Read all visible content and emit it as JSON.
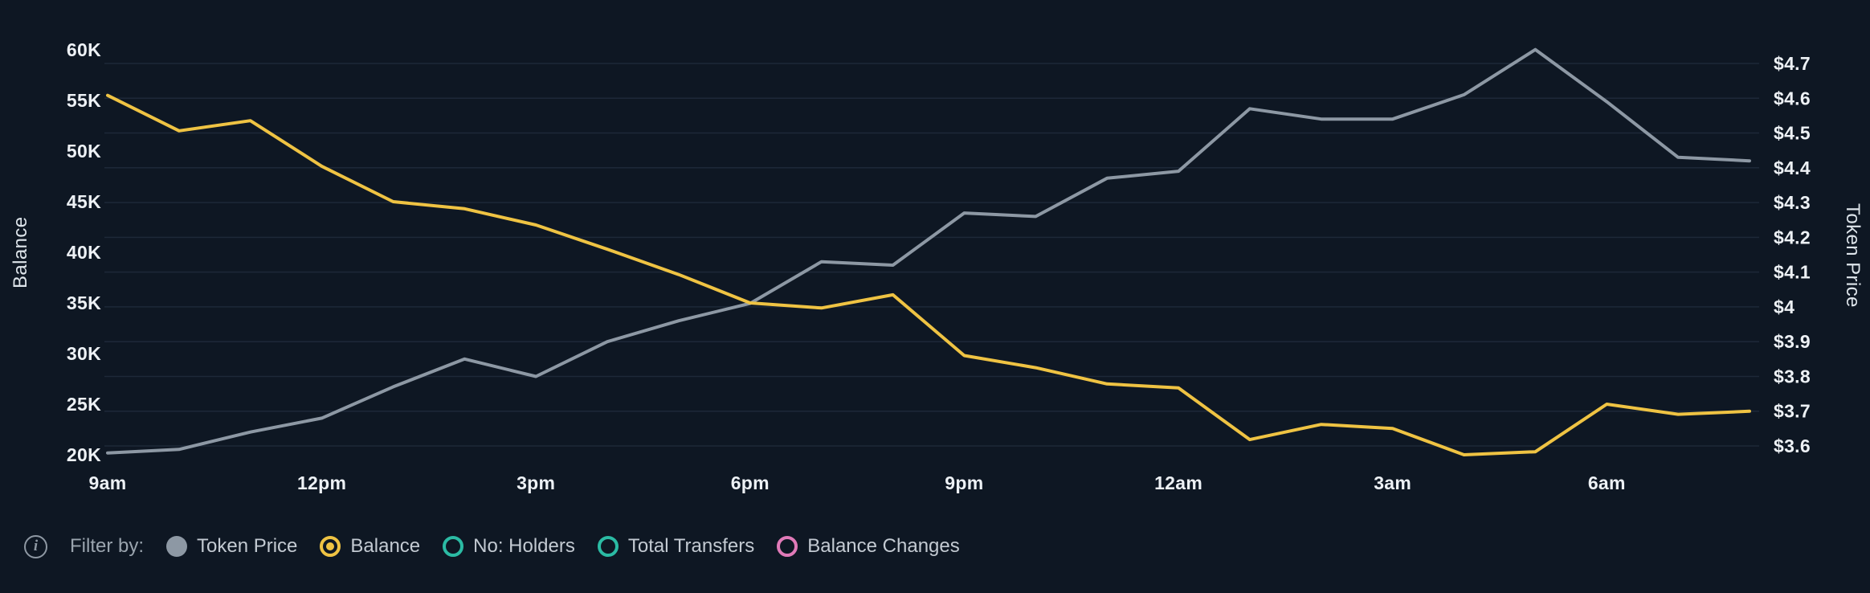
{
  "chart_data": {
    "type": "line",
    "title": "",
    "grid": "horizontal",
    "legend_position": "bottom",
    "x_hours": [
      "9am",
      "10am",
      "11am",
      "12pm",
      "1pm",
      "2pm",
      "3pm",
      "4pm",
      "5pm",
      "6pm",
      "7pm",
      "8pm",
      "9pm",
      "10pm",
      "11pm",
      "12am",
      "1am",
      "2am",
      "3am",
      "4am",
      "5am",
      "6am",
      "7am",
      "8am"
    ],
    "x_axis": {
      "tick_labels": [
        "9am",
        "12pm",
        "3pm",
        "6pm",
        "9pm",
        "12am",
        "3am",
        "6am"
      ],
      "tick_indices": [
        0,
        3,
        6,
        9,
        12,
        15,
        18,
        21
      ]
    },
    "left_axis": {
      "title": "Balance",
      "unit": "K",
      "tick_labels": [
        "60K",
        "55K",
        "50K",
        "45K",
        "40K",
        "35K",
        "30K",
        "25K",
        "20K"
      ],
      "tick_values": [
        60,
        55,
        50,
        45,
        40,
        35,
        30,
        25,
        20
      ],
      "range": [
        20,
        60
      ]
    },
    "right_axis": {
      "title": "Token Price",
      "unit": "$",
      "tick_labels": [
        "$4.7",
        "$4.6",
        "$4.5",
        "$4.4",
        "$4.3",
        "$4.2",
        "$4.1",
        "$4",
        "$3.9",
        "$3.8",
        "$3.7",
        "$3.6"
      ],
      "tick_values": [
        4.7,
        4.6,
        4.5,
        4.4,
        4.3,
        4.2,
        4.1,
        4.0,
        3.9,
        3.8,
        3.7,
        3.6
      ],
      "range": [
        3.6,
        4.7
      ]
    },
    "series": [
      {
        "name": "Token Price",
        "axis": "right",
        "color": "#8d98a4",
        "values": [
          3.58,
          3.59,
          3.64,
          3.68,
          3.77,
          3.85,
          3.8,
          3.9,
          3.96,
          4.01,
          4.13,
          4.12,
          4.27,
          4.26,
          4.37,
          4.39,
          4.57,
          4.54,
          4.54,
          4.61,
          4.74,
          4.59,
          4.43,
          4.42
        ]
      },
      {
        "name": "Balance",
        "axis": "left",
        "color": "#efc343",
        "values": [
          55.5,
          52,
          53,
          48.5,
          45,
          44.3,
          42.7,
          40.3,
          37.8,
          35.0,
          34.5,
          35.8,
          29.8,
          28.6,
          27,
          26.6,
          21.5,
          23,
          22.6,
          20,
          20.3,
          25,
          24,
          24.3
        ]
      }
    ]
  },
  "filter_bar": {
    "label": "Filter by:",
    "items": [
      {
        "label": "Token Price",
        "color": "#8d98a4",
        "marker": "filled",
        "active": true
      },
      {
        "label": "Balance",
        "color": "#efc343",
        "marker": "ring-dot",
        "active": true
      },
      {
        "label": "No: Holders",
        "color": "#2bbba4",
        "marker": "ring",
        "active": false
      },
      {
        "label": "Total Transfers",
        "color": "#2bbba4",
        "marker": "ring",
        "active": false
      },
      {
        "label": "Balance Changes",
        "color": "#e07ab8",
        "marker": "ring",
        "active": false
      }
    ]
  },
  "colors": {
    "background": "#0e1723",
    "grid": "#1d2838",
    "tick_text": "#edf1f5",
    "legend_text": "#c3cad2",
    "muted_text": "#9aa4ae"
  }
}
